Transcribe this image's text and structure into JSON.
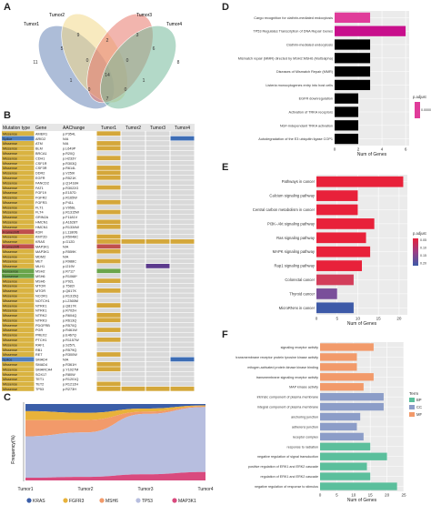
{
  "panel_letters": {
    "a": "A",
    "b": "B",
    "c": "C",
    "d": "D",
    "e": "E",
    "f": "F"
  },
  "venn": {
    "sets": [
      "Tumor1",
      "Tumor2",
      "Tumor3",
      "Tumor4"
    ],
    "colors": [
      "#6a87b8",
      "#f3d98a",
      "#e8786b",
      "#75b99a"
    ],
    "counts": {
      "only1": "11",
      "only2": "9",
      "only3": "3",
      "only4": "8",
      "t12": "5",
      "t23": "2",
      "t34": "6",
      "t14": "7",
      "t13": "1",
      "t24": "1",
      "t123": "0",
      "t124": "0",
      "t134": "0",
      "t234": "0",
      "t1234": "14"
    }
  },
  "table": {
    "headers": [
      "Mutation type",
      "Gene",
      "AAChange",
      "Tumor1",
      "Tumor2",
      "Tumor3",
      "Tumor4"
    ],
    "type_colors": {
      "Missense": "#d9b341",
      "Nonsense": "#6aa54a",
      "Frameshift": "#c0504d",
      "Splice": "#4f7fc0"
    },
    "tumor_colors": {
      "1": "#d4a73a",
      "2": "#c0504d",
      "3": "#3d6db5",
      "4": "#6aa54a",
      "5": "#5b3a8c"
    },
    "rows": [
      [
        "Missense",
        "AMER1",
        "p.P354L",
        [
          1,
          0,
          0,
          0
        ]
      ],
      [
        "Splice",
        "ARID2",
        "N/A",
        [
          0,
          0,
          0,
          3
        ]
      ],
      [
        "Missense",
        "ATM",
        "N/A",
        [
          1,
          0,
          0,
          0
        ]
      ],
      [
        "Missense",
        "BLM",
        "p.L649P",
        [
          1,
          0,
          0,
          0
        ]
      ],
      [
        "Missense",
        "BRCA1",
        "p.R20Q",
        [
          0,
          0,
          0,
          0
        ]
      ],
      [
        "Missense",
        "CDH1",
        "p.H233Y",
        [
          1,
          0,
          0,
          0
        ]
      ],
      [
        "Missense",
        "CSF1R",
        "p.R303Q",
        [
          0,
          0,
          0,
          0
        ]
      ],
      [
        "Missense",
        "CSF3R",
        "p.R614L",
        [
          1,
          0,
          0,
          0
        ]
      ],
      [
        "Missense",
        "DDR2",
        "p.V259I",
        [
          1,
          0,
          0,
          0
        ]
      ],
      [
        "Missense",
        "EGFR",
        "p.R521K",
        [
          1,
          0,
          0,
          0
        ]
      ],
      [
        "Missense",
        "FANCD2",
        "p.Q1418H",
        [
          0,
          0,
          0,
          0
        ]
      ],
      [
        "Missense",
        "FAT1",
        "p.R3022G",
        [
          1,
          0,
          0,
          0
        ]
      ],
      [
        "Missense",
        "FGF19",
        "p.E157D",
        [
          0,
          0,
          0,
          0
        ]
      ],
      [
        "Missense",
        "FGFR2",
        "p.R165W",
        [
          0,
          0,
          0,
          0
        ]
      ],
      [
        "Missense",
        "FGFR3",
        "p.P41L",
        [
          1,
          0,
          0,
          0
        ]
      ],
      [
        "Missense",
        "FLT1",
        "p.V956L",
        [
          0,
          0,
          0,
          0
        ]
      ],
      [
        "Missense",
        "FLT4",
        "p.R1315W",
        [
          1,
          0,
          0,
          0
        ]
      ],
      [
        "Missense",
        "GRIN2A",
        "p.F1181V",
        [
          0,
          0,
          0,
          0
        ]
      ],
      [
        "Missense",
        "HMCN1",
        "p.A1628T",
        [
          1,
          0,
          0,
          0
        ]
      ],
      [
        "Missense",
        "HMCN1",
        "p.R1334W",
        [
          1,
          0,
          0,
          0
        ]
      ],
      [
        "Frameshift",
        "KDR",
        "p.L1180fs",
        [
          0,
          0,
          0,
          0
        ]
      ],
      [
        "Missense",
        "KMT2D",
        "p.R5048C",
        [
          1,
          0,
          0,
          0
        ]
      ],
      [
        "Missense",
        "KRAS",
        "p.G12D",
        [
          1,
          1,
          1,
          1
        ]
      ],
      [
        "Frameshift",
        "MAP3K1",
        "N/A",
        [
          2,
          0,
          0,
          0
        ]
      ],
      [
        "Missense",
        "MAP3K1",
        "p.R559K",
        [
          1,
          0,
          0,
          0
        ]
      ],
      [
        "Missense",
        "MDM2",
        "N/A",
        [
          0,
          0,
          0,
          0
        ]
      ],
      [
        "Missense",
        "MET",
        "p.R988C",
        [
          1,
          0,
          0,
          0
        ]
      ],
      [
        "Missense",
        "MLH1",
        "p.I219V",
        [
          0,
          0,
          5,
          0
        ]
      ],
      [
        "Nonsense",
        "MSH2",
        "p.R711*",
        [
          4,
          0,
          0,
          0
        ]
      ],
      [
        "Nonsense",
        "MSH6",
        "p.R1068*",
        [
          0,
          0,
          0,
          0
        ]
      ],
      [
        "Missense",
        "MSH6",
        "p.P92L",
        [
          1,
          0,
          0,
          0
        ]
      ],
      [
        "Missense",
        "MTOR",
        "p.T582I",
        [
          0,
          0,
          0,
          0
        ]
      ],
      [
        "Missense",
        "MTOR",
        "p.Q617K",
        [
          1,
          0,
          0,
          0
        ]
      ],
      [
        "Missense",
        "NCOR1",
        "p.R1315Q",
        [
          0,
          0,
          0,
          0
        ]
      ],
      [
        "Missense",
        "NOTCH1",
        "p.L2365M",
        [
          0,
          0,
          0,
          0
        ]
      ],
      [
        "Missense",
        "NTRK1",
        "p.Q817K",
        [
          1,
          0,
          0,
          0
        ]
      ],
      [
        "Missense",
        "NTRK1",
        "p.R702H",
        [
          0,
          0,
          0,
          0
        ]
      ],
      [
        "Missense",
        "NTRK2",
        "p.R604Q",
        [
          1,
          0,
          0,
          0
        ]
      ],
      [
        "Missense",
        "NTRK3",
        "p.R613Q",
        [
          1,
          0,
          0,
          0
        ]
      ],
      [
        "Missense",
        "PDGFRB",
        "p.R570Q",
        [
          0,
          0,
          0,
          0
        ]
      ],
      [
        "Missense",
        "PGR",
        "p.R461W",
        [
          1,
          0,
          0,
          0
        ]
      ],
      [
        "Missense",
        "PREX2",
        "p.E467Q",
        [
          0,
          0,
          0,
          0
        ]
      ],
      [
        "Missense",
        "PTCH1",
        "p.R1157W",
        [
          1,
          0,
          0,
          0
        ]
      ],
      [
        "Missense",
        "RAF1",
        "p.S257L",
        [
          0,
          0,
          0,
          0
        ]
      ],
      [
        "Missense",
        "RB1",
        "p.R579Q",
        [
          0,
          0,
          0,
          0
        ]
      ],
      [
        "Missense",
        "RET",
        "p.R300W",
        [
          1,
          0,
          0,
          0
        ]
      ],
      [
        "Splice",
        "SMAD4",
        "N/A",
        [
          0,
          0,
          0,
          3
        ]
      ],
      [
        "Missense",
        "SMAD4",
        "p.R361H",
        [
          1,
          0,
          0,
          0
        ]
      ],
      [
        "Missense",
        "SMARCA4",
        "p.Y1027M",
        [
          1,
          0,
          0,
          0
        ]
      ],
      [
        "Missense",
        "SOX17",
        "p.R80W",
        [
          0,
          0,
          0,
          0
        ]
      ],
      [
        "Missense",
        "TET1",
        "p.R1201Q",
        [
          0,
          0,
          0,
          0
        ]
      ],
      [
        "Missense",
        "TET2",
        "p.R1212H",
        [
          1,
          0,
          0,
          0
        ]
      ],
      [
        "Missense",
        "TP53",
        "p.R273H",
        [
          1,
          1,
          1,
          1
        ]
      ]
    ]
  },
  "stream": {
    "ylabel": "Frequency(%)",
    "categories": [
      "Tumor1",
      "Tumor2",
      "Tumor3",
      "Tumor4"
    ],
    "legend": [
      "KRAS",
      "FGFR3",
      "MSH6",
      "TP53",
      "MAP3K1"
    ],
    "colors": [
      "#3b5ea8",
      "#e8b23a",
      "#f29a6a",
      "#b7bedf",
      "#d94a7e"
    ],
    "series": [
      [
        8,
        10,
        6,
        2
      ],
      [
        10,
        8,
        4,
        1
      ],
      [
        18,
        14,
        3,
        1
      ],
      [
        46,
        50,
        79,
        85
      ],
      [
        3,
        4,
        8,
        11
      ]
    ]
  },
  "chart_data": [
    {
      "id": "D",
      "type": "bar",
      "orientation": "horizontal",
      "categories": [
        "Cargo recognition for clathrin-mediated endocytosis",
        "TP53 Regulates Transcription of DNA Repair Genes",
        "Clathrin-mediated endocytosis",
        "Mismatch repair (MMR) directed by MSH2:MSH6 (MutSalpha)",
        "Diseases of Mismatch Repair (MMR)",
        "Listeria monocytogenes entry into host cells",
        "EGFR downregulation",
        "Activation of TRKA receptors",
        "NGF-independant TRKA activation",
        "Autodegradation of the E3 ubiquitin ligase COP1"
      ],
      "values": [
        3,
        6,
        3,
        3,
        3,
        3,
        2,
        2,
        2,
        2
      ],
      "xlabel": "Num of Genes",
      "xticks": [
        0,
        2,
        4,
        6
      ],
      "legend_title": "p.adjust",
      "legend_ticks": [
        "0.00000"
      ],
      "colors": [
        "#e03c9a",
        "#c80f8c"
      ]
    },
    {
      "id": "E",
      "type": "bar",
      "orientation": "horizontal",
      "categories": [
        "Pathways in cancer",
        "Calcium signaling pathway",
        "Central carbon metabolism in cancer",
        "PI3K−Akt signaling pathway",
        "Ras signaling pathway",
        "MAPK signaling pathway",
        "Rap1 signaling pathway",
        "Colorectal cancer",
        "Thyroid cancer",
        "MicroRNAs in cancer"
      ],
      "values": [
        21,
        10,
        10,
        14,
        12,
        13,
        11,
        9,
        5,
        9
      ],
      "xlabel": "Num of Genes",
      "xticks": [
        0,
        5,
        10,
        15,
        20
      ],
      "legend_title": "p.adjust",
      "legend_ticks": [
        "0.05",
        "0.10",
        "0.15",
        "0.20"
      ],
      "colors": [
        "#e8213a",
        "#e8213a",
        "#e8213a",
        "#e8213a",
        "#e8213a",
        "#e8213a",
        "#e8213a",
        "#d33d5a",
        "#7a4f9a",
        "#3d5aa8"
      ]
    },
    {
      "id": "F",
      "type": "bar",
      "orientation": "horizontal",
      "categories": [
        "signaling receptor activity",
        "transmembrane receptor protein tyrosine kinase activity",
        "mitogen-activated protein kinase kinase binding",
        "transmembrane signaling receptor activity",
        "MAP kinase activity",
        "intrinsic component of plasma membrane",
        "integral component of plasma membrane",
        "anchoring junction",
        "adherens junction",
        "receptor complex",
        "response to radiation",
        "negative regulation of signal transduction",
        "positive regulation of ERK1 and ERK2 cascade",
        "regulation of ERK1 and ERK2 cascade",
        "negative regulation of response to stimulus"
      ],
      "groups": [
        "MF",
        "MF",
        "MF",
        "MF",
        "MF",
        "CC",
        "CC",
        "CC",
        "CC",
        "CC",
        "BP",
        "BP",
        "BP",
        "BP",
        "BP"
      ],
      "values": [
        16,
        11,
        11,
        16,
        13,
        19,
        19,
        12,
        11,
        13,
        15,
        20,
        14,
        15,
        23
      ],
      "xlabel": "Num of Genes",
      "xticks": [
        0,
        5,
        10,
        15,
        20,
        25
      ],
      "legend_title": "Term",
      "legend": [
        "BP",
        "CC",
        "MF"
      ],
      "group_colors": {
        "BP": "#5bbf9c",
        "CC": "#8c9dc8",
        "MF": "#f29a6a"
      }
    }
  ]
}
